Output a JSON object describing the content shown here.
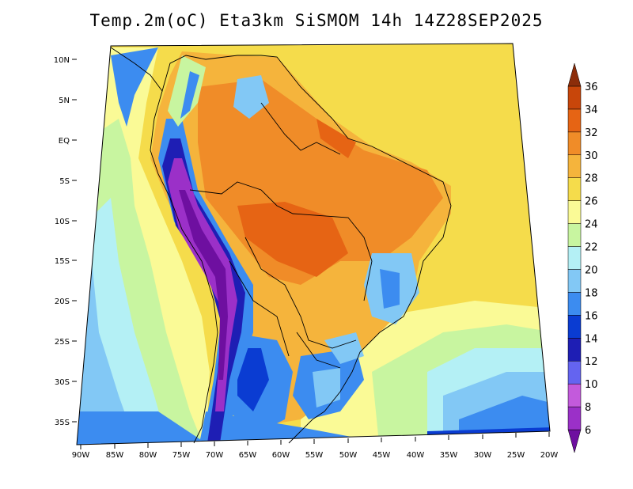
{
  "title": "Temp.2m(oC) Eta3km SiSMOM 14h 14Z28SEP2025",
  "map": {
    "lat_ticks": [
      "10N",
      "5N",
      "EQ",
      "5S",
      "10S",
      "15S",
      "20S",
      "25S",
      "30S",
      "35S"
    ],
    "lon_ticks": [
      "90W",
      "85W",
      "80W",
      "75W",
      "70W",
      "65W",
      "60W",
      "55W",
      "50W",
      "45W",
      "40W",
      "35W",
      "30W",
      "25W",
      "20W"
    ]
  },
  "colorbar": {
    "levels": [
      "6",
      "8",
      "10",
      "12",
      "14",
      "16",
      "18",
      "20",
      "22",
      "24",
      "26",
      "28",
      "30",
      "32",
      "34",
      "36"
    ],
    "colors": [
      "#6e0fa0",
      "#9b30c8",
      "#c35adc",
      "#6464f0",
      "#1e1eb4",
      "#0a3cd2",
      "#3c8cf0",
      "#82c8f5",
      "#b4f0f5",
      "#c8f5a0",
      "#fafa96",
      "#f5dc4b",
      "#f5b43c",
      "#f08c28",
      "#e66414",
      "#c8460a",
      "#8c2d0a"
    ]
  }
}
